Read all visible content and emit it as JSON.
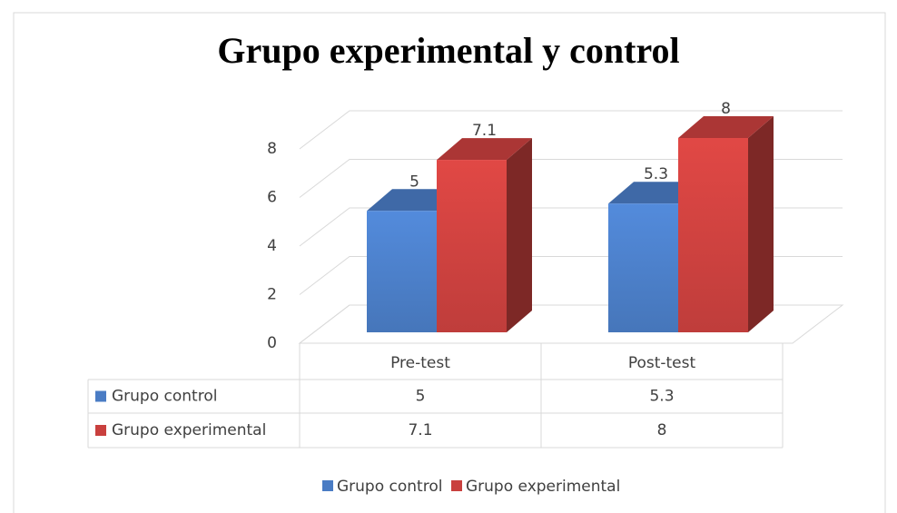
{
  "chart_data": {
    "type": "bar",
    "title": "Grupo experimental y control",
    "categories": [
      "Pre-test",
      "Post-test"
    ],
    "series": [
      {
        "name": "Grupo control",
        "color": "#4a7cc4",
        "values": [
          5,
          5.3
        ]
      },
      {
        "name": "Grupo experimental",
        "color": "#c9403e",
        "values": [
          7.1,
          8
        ]
      }
    ],
    "ylim": [
      0,
      8
    ],
    "yticks": [
      0,
      2,
      4,
      6,
      8
    ],
    "grid": true,
    "legend": "bottom",
    "data_table": true
  }
}
